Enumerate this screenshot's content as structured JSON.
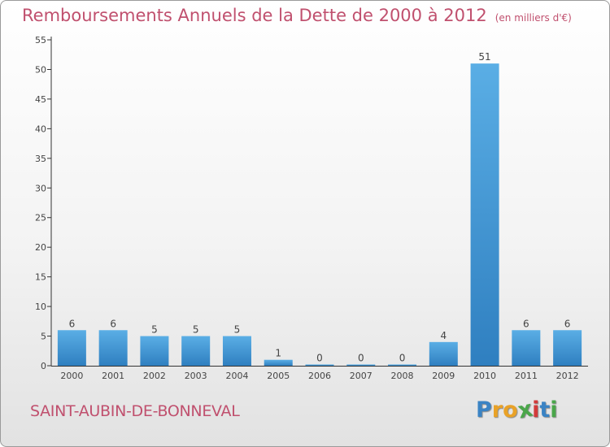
{
  "chart_data": {
    "type": "bar",
    "title": "Remboursements Annuels de la Dette de 2000 à 2012",
    "subtitle": "(en milliers d'€)",
    "xlabel": "",
    "ylabel": "",
    "categories": [
      "2000",
      "2001",
      "2002",
      "2003",
      "2004",
      "2005",
      "2006",
      "2007",
      "2008",
      "2009",
      "2010",
      "2011",
      "2012"
    ],
    "values": [
      6,
      6,
      5,
      5,
      5,
      1,
      0,
      0,
      0,
      4,
      51,
      6,
      6
    ],
    "data_labels": [
      "6",
      "6",
      "5",
      "5",
      "5",
      "1",
      "0",
      "0",
      "0",
      "4",
      "51",
      "6",
      "6"
    ],
    "ylim": [
      0,
      55
    ],
    "yticks": [
      0,
      5,
      10,
      15,
      20,
      25,
      30,
      35,
      40,
      45,
      50,
      55
    ],
    "grid": false,
    "legend": "none"
  },
  "footer": {
    "location": "SAINT-AUBIN-DE-BONNEVAL",
    "logo_letters": [
      "P",
      "r",
      "o",
      "x",
      "i",
      "t",
      "i"
    ]
  },
  "colors": {
    "title": "#c0506e",
    "bar_light": "#5aaee5",
    "bar_dark": "#2f7fc0",
    "logo": [
      "#3a83c4",
      "#e9a227",
      "#e9a227",
      "#4aa64a",
      "#d23b3b",
      "#3a83c4",
      "#4aa64a"
    ]
  }
}
